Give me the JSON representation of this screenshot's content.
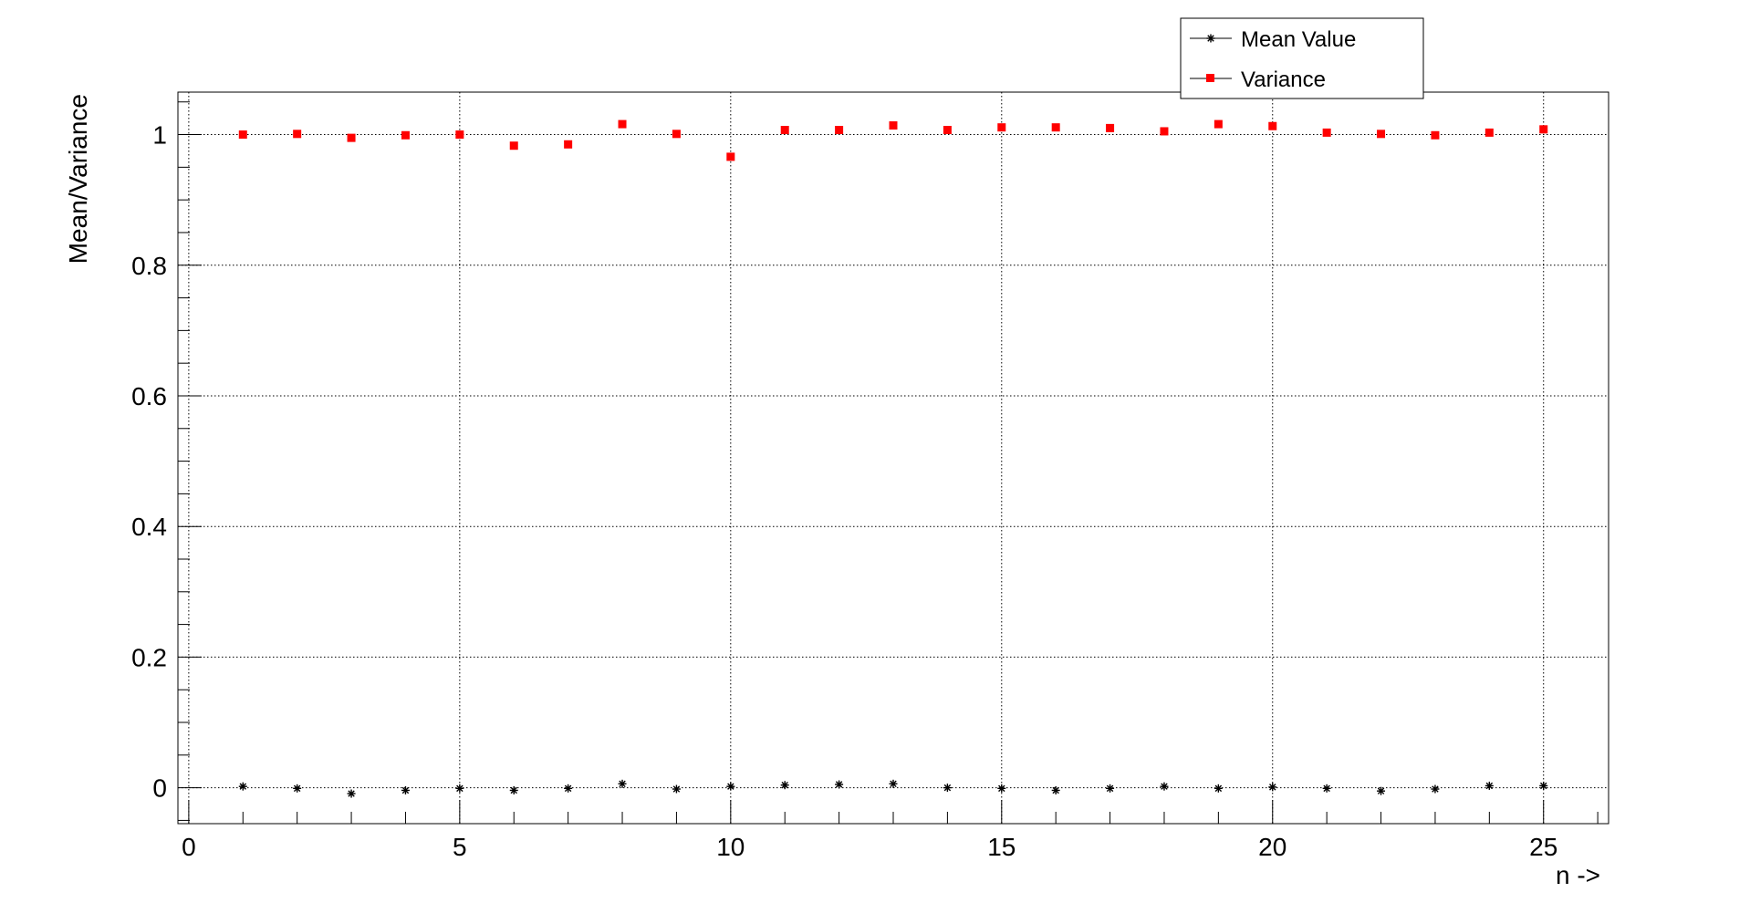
{
  "chart_data": {
    "type": "scatter",
    "xlabel": "n ->",
    "ylabel": "Mean/Variance",
    "xlim": [
      -0.2,
      26.2
    ],
    "ylim": [
      -0.055,
      1.065
    ],
    "grid": true,
    "legend_placement": "top-right",
    "x_ticks": [
      0,
      5,
      10,
      15,
      20,
      25
    ],
    "y_ticks": [
      0,
      0.2,
      0.4,
      0.6,
      0.8,
      1
    ],
    "x_tick_labels": [
      "0",
      "5",
      "10",
      "15",
      "20",
      "25"
    ],
    "y_tick_labels": [
      "0",
      "0.2",
      "0.4",
      "0.6",
      "0.8",
      "1"
    ],
    "x": [
      1,
      2,
      3,
      4,
      5,
      6,
      7,
      8,
      9,
      10,
      11,
      12,
      13,
      14,
      15,
      16,
      17,
      18,
      19,
      20,
      21,
      22,
      23,
      24,
      25
    ],
    "series": [
      {
        "name": "Mean Value",
        "marker": "star",
        "color": "#000000",
        "values": [
          0.002,
          -0.001,
          -0.009,
          -0.004,
          -0.001,
          -0.004,
          -0.001,
          0.006,
          -0.002,
          0.002,
          0.004,
          0.005,
          0.006,
          0.0,
          -0.001,
          -0.004,
          -0.001,
          0.002,
          -0.001,
          0.001,
          -0.001,
          -0.005,
          -0.002,
          0.003,
          0.003
        ]
      },
      {
        "name": "Variance",
        "marker": "square",
        "color": "#ff0000",
        "values": [
          1.0,
          1.001,
          0.995,
          0.999,
          1.0,
          0.983,
          0.985,
          1.016,
          1.001,
          0.966,
          1.007,
          1.007,
          1.014,
          1.007,
          1.011,
          1.011,
          1.01,
          1.005,
          1.016,
          1.013,
          1.003,
          1.001,
          0.999,
          1.003,
          1.008
        ]
      }
    ]
  }
}
